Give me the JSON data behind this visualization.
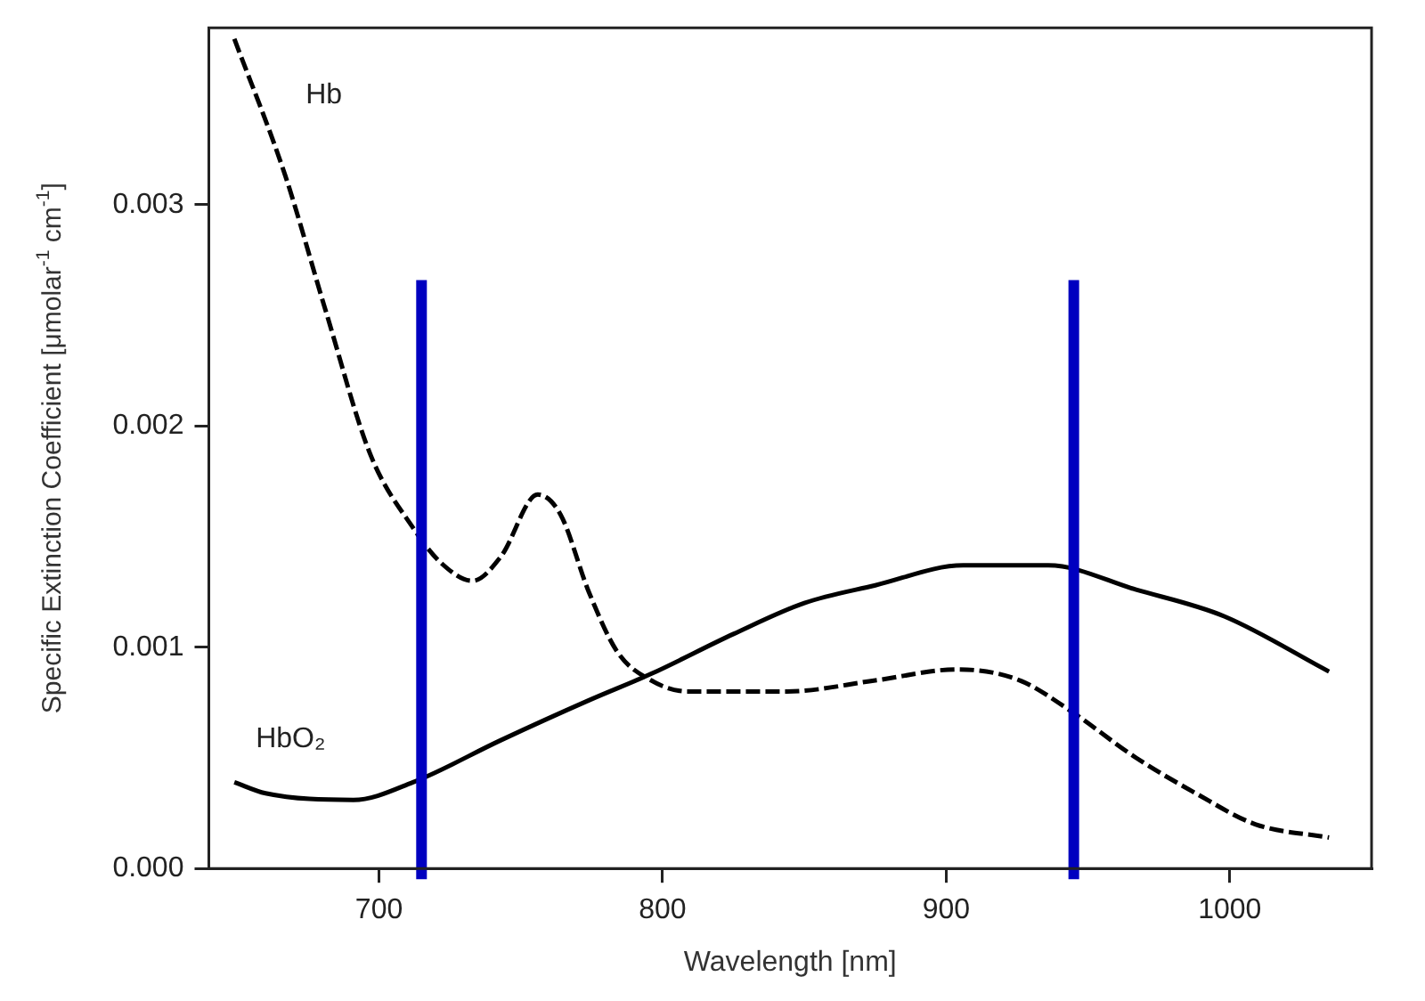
{
  "chart_data": {
    "type": "line",
    "xlabel": "Wavelength [nm]",
    "ylabel": "Specific Extinction Coefficient [μmolar$^{-1}$ cm$^{-1}$]",
    "xlim": [
      640,
      1050
    ],
    "xticks": [
      700,
      800,
      900,
      1000
    ],
    "ylim": [
      0,
      0.0038
    ],
    "yticks": [
      {
        "value": 0,
        "label": "0.000"
      },
      {
        "value": 0.001,
        "label": "0.001"
      },
      {
        "value": 0.002,
        "label": "0.002"
      },
      {
        "value": 0.003,
        "label": "0.003"
      }
    ],
    "grid": false,
    "legend": false,
    "marker": "none",
    "series": [
      {
        "name": "Hb",
        "color": "#000000",
        "line_style": "dashed",
        "x": [
          649,
          667,
          681,
          697,
          712,
          722,
          733,
          743,
          756,
          764,
          774,
          784,
          796,
          809,
          844,
          875,
          904,
          926,
          943,
          967,
          988,
          1009,
          1035
        ],
        "values": [
          0.00375,
          0.00313,
          0.00253,
          0.00187,
          0.00154,
          0.00138,
          0.0013,
          0.00141,
          0.00169,
          0.0016,
          0.00125,
          0.00098,
          0.00085,
          0.0008,
          0.0008,
          0.00085,
          0.0009,
          0.00085,
          0.00072,
          0.0005,
          0.00034,
          0.0002,
          0.00014
        ]
      },
      {
        "name": "HbO₂",
        "color": "#000000",
        "line_style": "solid",
        "x": [
          649,
          660,
          691,
          712,
          743,
          774,
          796,
          825,
          850,
          875,
          906,
          936,
          967,
          998,
          1035
        ],
        "values": [
          0.00039,
          0.00034,
          0.00031,
          0.00039,
          0.00058,
          0.00076,
          0.00088,
          0.00106,
          0.0012,
          0.00128,
          0.00137,
          0.00137,
          0.00126,
          0.00114,
          0.00089
        ]
      }
    ],
    "ref_lines": [
      {
        "axis": "x",
        "value": 715,
        "color": "#0000c0"
      },
      {
        "axis": "x",
        "value": 945,
        "color": "#0000c0"
      }
    ]
  }
}
